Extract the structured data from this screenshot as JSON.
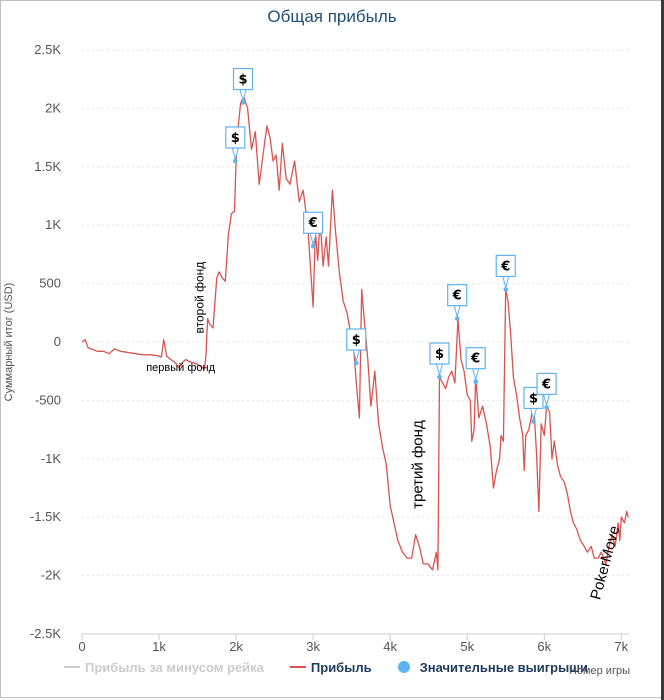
{
  "chart_data": {
    "type": "line",
    "title": "Общая прибыль",
    "xlabel": "Номер игры",
    "ylabel": "Суммарный итог (USD)",
    "xlim": [
      0,
      7100
    ],
    "ylim": [
      -2500,
      2500
    ],
    "x_ticks": [
      {
        "value": 0,
        "label": "0"
      },
      {
        "value": 1000,
        "label": "1k"
      },
      {
        "value": 2000,
        "label": "2k"
      },
      {
        "value": 3000,
        "label": "3k"
      },
      {
        "value": 4000,
        "label": "4k"
      },
      {
        "value": 5000,
        "label": "5k"
      },
      {
        "value": 6000,
        "label": "6k"
      },
      {
        "value": 7000,
        "label": "7k"
      }
    ],
    "y_ticks": [
      {
        "value": 2500,
        "label": "2.5K"
      },
      {
        "value": 2000,
        "label": "2K"
      },
      {
        "value": 1500,
        "label": "1.5K"
      },
      {
        "value": 1000,
        "label": "1K"
      },
      {
        "value": 500,
        "label": "500"
      },
      {
        "value": 0,
        "label": "0"
      },
      {
        "value": -500,
        "label": "-500"
      },
      {
        "value": -1000,
        "label": "-1K"
      },
      {
        "value": -1500,
        "label": "-1.5K"
      },
      {
        "value": -2000,
        "label": "-2K"
      },
      {
        "value": -2500,
        "label": "-2.5K"
      }
    ],
    "grid": true,
    "legend_position": "bottom",
    "legend": [
      {
        "name": "Прибыль за минусом рейка",
        "color": "#cccccc",
        "kind": "line"
      },
      {
        "name": "Прибыль",
        "color": "#d9534f",
        "kind": "line"
      },
      {
        "name": "Значительные выигрыши",
        "color": "#5fb3f0",
        "kind": "marker"
      }
    ],
    "series": [
      {
        "name": "Прибыль",
        "color": "#d9534f",
        "points": [
          [
            0,
            0
          ],
          [
            40,
            20
          ],
          [
            80,
            -50
          ],
          [
            120,
            -60
          ],
          [
            200,
            -80
          ],
          [
            280,
            -80
          ],
          [
            350,
            -100
          ],
          [
            420,
            -60
          ],
          [
            500,
            -80
          ],
          [
            600,
            -90
          ],
          [
            700,
            -100
          ],
          [
            800,
            -110
          ],
          [
            900,
            -110
          ],
          [
            1000,
            -120
          ],
          [
            1030,
            -130
          ],
          [
            1060,
            20
          ],
          [
            1100,
            -120
          ],
          [
            1150,
            -150
          ],
          [
            1200,
            -170
          ],
          [
            1260,
            -220
          ],
          [
            1310,
            -170
          ],
          [
            1350,
            -150
          ],
          [
            1400,
            -170
          ],
          [
            1460,
            -180
          ],
          [
            1520,
            -200
          ],
          [
            1590,
            -230
          ],
          [
            1610,
            -110
          ],
          [
            1630,
            200
          ],
          [
            1660,
            150
          ],
          [
            1700,
            120
          ],
          [
            1750,
            550
          ],
          [
            1780,
            600
          ],
          [
            1820,
            550
          ],
          [
            1860,
            520
          ],
          [
            1900,
            920
          ],
          [
            1940,
            1100
          ],
          [
            1980,
            1120
          ],
          [
            2000,
            1550
          ],
          [
            2020,
            1800
          ],
          [
            2060,
            2050
          ],
          [
            2100,
            2100
          ],
          [
            2150,
            2000
          ],
          [
            2200,
            1650
          ],
          [
            2250,
            1800
          ],
          [
            2300,
            1350
          ],
          [
            2350,
            1600
          ],
          [
            2400,
            1850
          ],
          [
            2440,
            1750
          ],
          [
            2480,
            1550
          ],
          [
            2520,
            1600
          ],
          [
            2560,
            1300
          ],
          [
            2600,
            1700
          ],
          [
            2650,
            1400
          ],
          [
            2700,
            1350
          ],
          [
            2760,
            1550
          ],
          [
            2820,
            1200
          ],
          [
            2870,
            1300
          ],
          [
            2930,
            1000
          ],
          [
            2960,
            700
          ],
          [
            3000,
            300
          ],
          [
            3030,
            950
          ],
          [
            3060,
            700
          ],
          [
            3090,
            1050
          ],
          [
            3130,
            650
          ],
          [
            3170,
            900
          ],
          [
            3200,
            650
          ],
          [
            3250,
            1300
          ],
          [
            3290,
            950
          ],
          [
            3340,
            600
          ],
          [
            3390,
            350
          ],
          [
            3440,
            250
          ],
          [
            3480,
            100
          ],
          [
            3520,
            0
          ],
          [
            3560,
            -350
          ],
          [
            3600,
            -650
          ],
          [
            3630,
            450
          ],
          [
            3670,
            150
          ],
          [
            3710,
            -150
          ],
          [
            3750,
            -550
          ],
          [
            3800,
            -250
          ],
          [
            3850,
            -700
          ],
          [
            3900,
            -900
          ],
          [
            3950,
            -1050
          ],
          [
            4000,
            -1400
          ],
          [
            4050,
            -1550
          ],
          [
            4100,
            -1700
          ],
          [
            4160,
            -1800
          ],
          [
            4220,
            -1850
          ],
          [
            4280,
            -1850
          ],
          [
            4330,
            -1650
          ],
          [
            4380,
            -1750
          ],
          [
            4430,
            -1900
          ],
          [
            4490,
            -1900
          ],
          [
            4550,
            -1950
          ],
          [
            4600,
            -1800
          ],
          [
            4620,
            -1950
          ],
          [
            4640,
            -300
          ],
          [
            4680,
            -350
          ],
          [
            4720,
            -400
          ],
          [
            4760,
            -300
          ],
          [
            4800,
            -250
          ],
          [
            4840,
            -350
          ],
          [
            4880,
            200
          ],
          [
            4920,
            -150
          ],
          [
            4960,
            -250
          ],
          [
            5000,
            -450
          ],
          [
            5040,
            -500
          ],
          [
            5060,
            -850
          ],
          [
            5090,
            -750
          ],
          [
            5110,
            -300
          ],
          [
            5150,
            -650
          ],
          [
            5200,
            -550
          ],
          [
            5250,
            -700
          ],
          [
            5300,
            -900
          ],
          [
            5340,
            -1250
          ],
          [
            5380,
            -1100
          ],
          [
            5420,
            -1000
          ],
          [
            5440,
            -800
          ],
          [
            5470,
            -850
          ],
          [
            5500,
            450
          ],
          [
            5530,
            350
          ],
          [
            5560,
            100
          ],
          [
            5600,
            -300
          ],
          [
            5640,
            -450
          ],
          [
            5680,
            -650
          ],
          [
            5720,
            -800
          ],
          [
            5740,
            -1100
          ],
          [
            5760,
            -800
          ],
          [
            5800,
            -750
          ],
          [
            5830,
            -650
          ],
          [
            5860,
            -500
          ],
          [
            5900,
            -950
          ],
          [
            5930,
            -1450
          ],
          [
            5960,
            -700
          ],
          [
            6000,
            -800
          ],
          [
            6030,
            -550
          ],
          [
            6070,
            -600
          ],
          [
            6100,
            -1000
          ],
          [
            6130,
            -850
          ],
          [
            6170,
            -1050
          ],
          [
            6210,
            -1150
          ],
          [
            6260,
            -1200
          ],
          [
            6300,
            -1300
          ],
          [
            6340,
            -1450
          ],
          [
            6380,
            -1550
          ],
          [
            6420,
            -1600
          ],
          [
            6470,
            -1700
          ],
          [
            6520,
            -1750
          ],
          [
            6560,
            -1800
          ],
          [
            6610,
            -1750
          ],
          [
            6650,
            -1850
          ],
          [
            6700,
            -1850
          ],
          [
            6740,
            -1800
          ],
          [
            6800,
            -1900
          ],
          [
            6840,
            -1750
          ],
          [
            6880,
            -1650
          ],
          [
            6920,
            -1750
          ],
          [
            6960,
            -1550
          ],
          [
            6980,
            -1700
          ],
          [
            7000,
            -1500
          ],
          [
            7040,
            -1550
          ],
          [
            7070,
            -1450
          ],
          [
            7090,
            -1500
          ]
        ]
      }
    ],
    "markers": [
      {
        "x": 1990,
        "y": 1550,
        "symbol": "$"
      },
      {
        "x": 2090,
        "y": 2050,
        "symbol": "$"
      },
      {
        "x": 3000,
        "y": 820,
        "symbol": "€"
      },
      {
        "x": 3560,
        "y": -180,
        "symbol": "$"
      },
      {
        "x": 4640,
        "y": -300,
        "symbol": "$"
      },
      {
        "x": 4870,
        "y": 200,
        "symbol": "€"
      },
      {
        "x": 5110,
        "y": -340,
        "symbol": "€"
      },
      {
        "x": 5500,
        "y": 450,
        "symbol": "€"
      },
      {
        "x": 5860,
        "y": -680,
        "symbol": "$"
      },
      {
        "x": 6030,
        "y": -560,
        "symbol": "€"
      }
    ],
    "annotations": [
      {
        "x": 1280,
        "y": -250,
        "text": "первый фонд",
        "rotate": 0,
        "size": 11
      },
      {
        "x": 1580,
        "y": 380,
        "text": "второй фонд",
        "rotate": -90,
        "size": 12
      },
      {
        "x": 4420,
        "y": -1050,
        "text": "третий фонд",
        "rotate": -90,
        "size": 15
      },
      {
        "x": 6850,
        "y": -1900,
        "text": "PokerMove",
        "rotate": -75,
        "size": 15
      }
    ]
  }
}
